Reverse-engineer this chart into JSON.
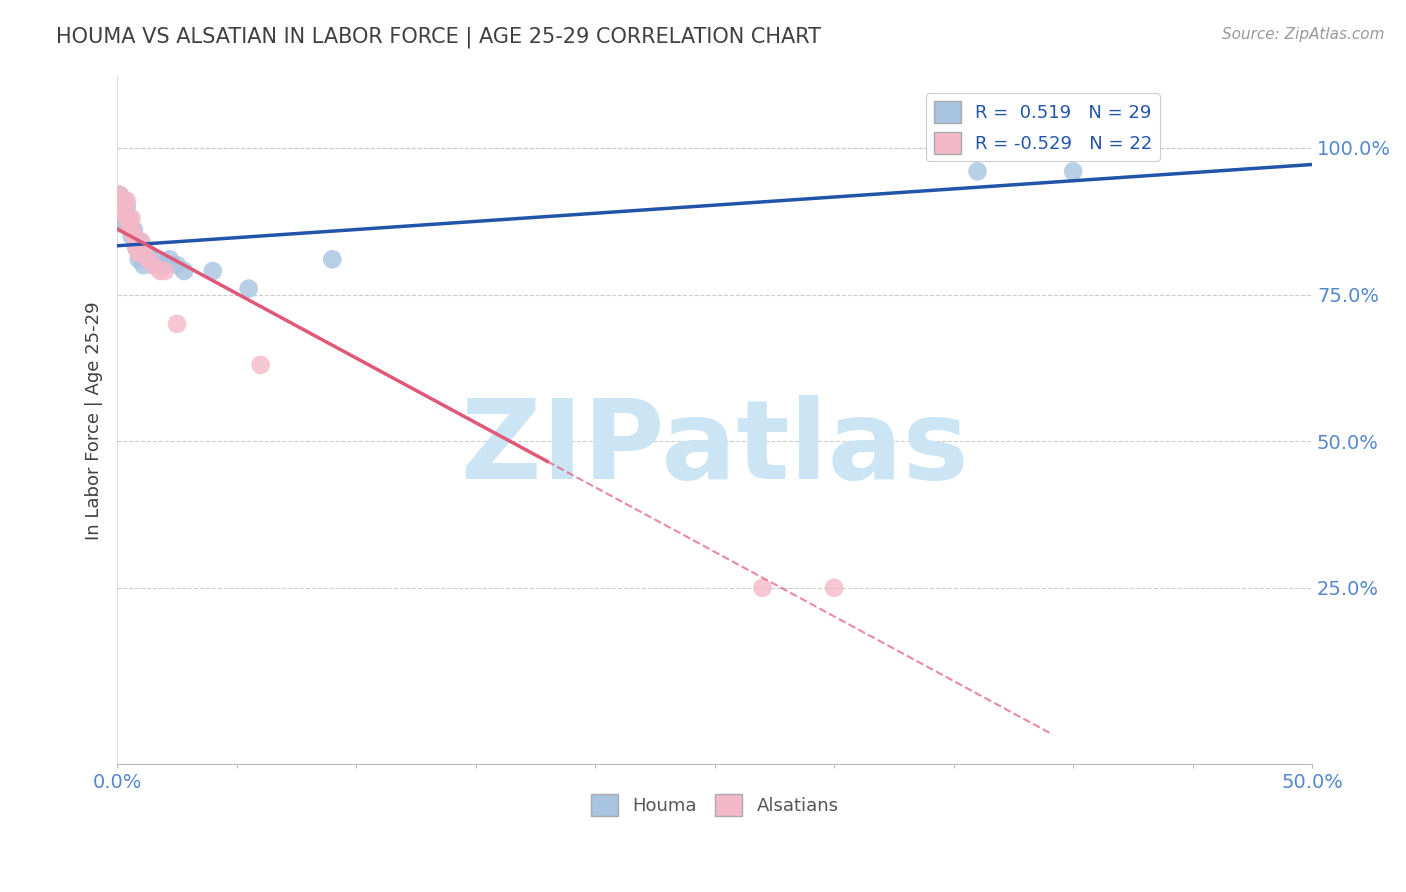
{
  "title": "HOUMA VS ALSATIAN IN LABOR FORCE | AGE 25-29 CORRELATION CHART",
  "source_text": "Source: ZipAtlas.com",
  "ylabel": "In Labor Force | Age 25-29",
  "xlim": [
    0.0,
    0.5
  ],
  "ylim": [
    -0.05,
    1.12
  ],
  "xtick_vals": [
    0.0,
    0.05,
    0.1,
    0.15,
    0.2,
    0.25,
    0.3,
    0.35,
    0.4,
    0.45,
    0.5
  ],
  "xtick_labels_sparse": {
    "0.0": "0.0%",
    "0.5": "50.0%"
  },
  "ytick_vals": [
    0.25,
    0.5,
    0.75,
    1.0
  ],
  "ytick_labels": [
    "25.0%",
    "50.0%",
    "75.0%",
    "100.0%"
  ],
  "houma_color": "#a8c4e0",
  "alsatian_color": "#f4b8c8",
  "houma_line_color": "#2255aa",
  "alsatian_line_color": "#e05878",
  "watermark_text": "ZIPatlas",
  "watermark_color": "#cce5f5",
  "r_houma": 0.519,
  "n_houma": 29,
  "r_alsatian": -0.529,
  "n_alsatian": 22,
  "houma_x": [
    0.001,
    0.002,
    0.002,
    0.003,
    0.003,
    0.004,
    0.005,
    0.005,
    0.006,
    0.006,
    0.007,
    0.008,
    0.009,
    0.01,
    0.011,
    0.012,
    0.013,
    0.015,
    0.017,
    0.018,
    0.02,
    0.022,
    0.025,
    0.028,
    0.04,
    0.055,
    0.09,
    0.36,
    0.4
  ],
  "houma_y": [
    0.92,
    0.89,
    0.87,
    0.91,
    0.87,
    0.9,
    0.88,
    0.87,
    0.86,
    0.85,
    0.86,
    0.83,
    0.81,
    0.84,
    0.8,
    0.82,
    0.82,
    0.8,
    0.81,
    0.8,
    0.8,
    0.81,
    0.8,
    0.79,
    0.79,
    0.76,
    0.81,
    0.96,
    0.96
  ],
  "alsatian_x": [
    0.001,
    0.002,
    0.002,
    0.003,
    0.004,
    0.004,
    0.005,
    0.006,
    0.006,
    0.007,
    0.008,
    0.009,
    0.01,
    0.011,
    0.013,
    0.015,
    0.018,
    0.02,
    0.025,
    0.06,
    0.27,
    0.3
  ],
  "alsatian_y": [
    0.92,
    0.91,
    0.89,
    0.9,
    0.88,
    0.91,
    0.87,
    0.88,
    0.86,
    0.85,
    0.83,
    0.82,
    0.84,
    0.82,
    0.81,
    0.8,
    0.79,
    0.79,
    0.7,
    0.63,
    0.25,
    0.25
  ],
  "background_color": "#ffffff",
  "grid_color": "#cccccc",
  "title_color": "#404040",
  "axis_label_color": "#404040",
  "tick_label_color": "#5588cc"
}
